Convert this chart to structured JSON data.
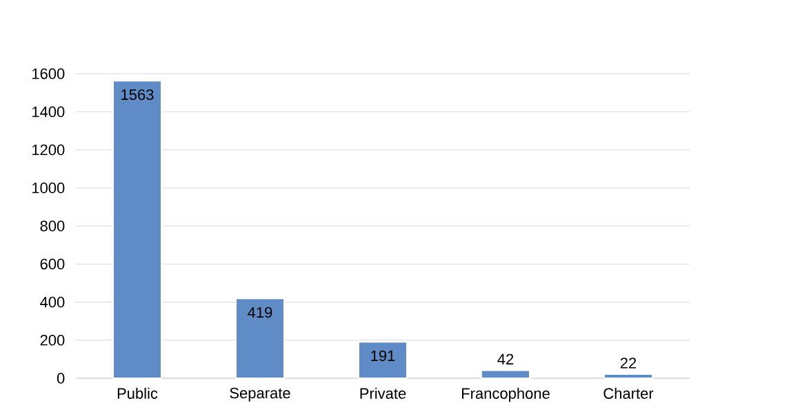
{
  "chart_data": {
    "type": "bar",
    "categories": [
      "Public",
      "Separate",
      "Private",
      "Francophone",
      "Charter"
    ],
    "values": [
      1563,
      419,
      191,
      42,
      22
    ],
    "color": "#5f8bc6",
    "ylim": [
      0,
      1600
    ],
    "yticks": [
      0,
      200,
      400,
      600,
      800,
      1000,
      1200,
      1400,
      1600
    ],
    "grid": "y",
    "data_labels": true
  }
}
